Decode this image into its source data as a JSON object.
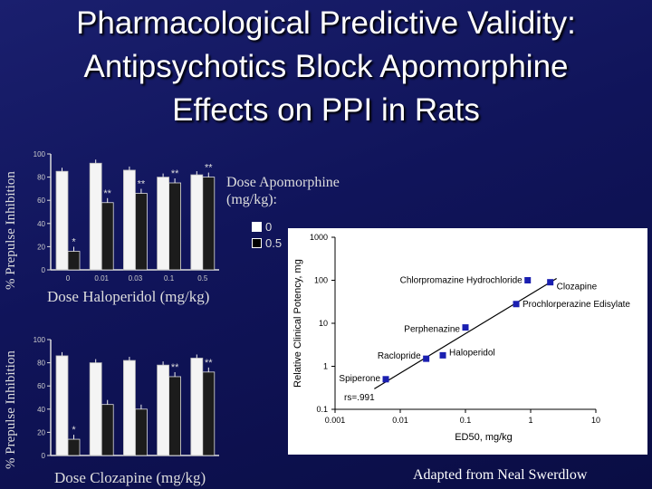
{
  "title": {
    "line1": "Pharmacological Predictive Validity:",
    "line2": "Antipsychotics Block Apomorphine",
    "line3": "Effects on PPI in Rats"
  },
  "top_panel": {
    "ylabel": "% Prepulse Inhibition",
    "xlabel": "Dose Haloperidol (mg/kg)",
    "yticks": [
      "100",
      "80",
      "60",
      "40",
      "20",
      "0"
    ],
    "categories": [
      "0",
      "0.01",
      "0.03",
      "0.1",
      "0.5"
    ],
    "values_dose0": [
      85,
      92,
      86,
      80,
      82
    ],
    "values_dose05": [
      16,
      58,
      66,
      75,
      80
    ],
    "significance": [
      "*",
      "**",
      "**",
      "**",
      "**"
    ]
  },
  "bottom_panel": {
    "ylabel": "% Prepulse Inhibition",
    "xlabel": "Dose Clozapine (mg/kg)",
    "yticks": [
      "100",
      "80",
      "60",
      "40",
      "20",
      "0"
    ],
    "values_dose0": [
      86,
      80,
      82,
      78,
      84
    ],
    "values_dose05": [
      14,
      44,
      40,
      68,
      72
    ],
    "significance": [
      "*",
      "",
      "",
      "**",
      "**"
    ]
  },
  "legend": {
    "title_line1": "Dose Apomorphine",
    "title_line2": "(mg/kg):",
    "items": [
      {
        "label": "0",
        "color": "#ffffff"
      },
      {
        "label": "0.5",
        "color": "#000000"
      }
    ]
  },
  "chart_data": {
    "type": "scatter",
    "xlabel": "ED50, mg/kg",
    "ylabel": "Relative Clinical Potency, mg",
    "x_scale": "log",
    "y_scale": "log",
    "xlim": [
      0.001,
      10
    ],
    "ylim": [
      0.1,
      1000
    ],
    "x_ticks": [
      "0.001",
      "0.01",
      "0.1",
      "1",
      "10"
    ],
    "y_ticks": [
      "1000",
      "100",
      "10",
      "1",
      "0.1"
    ],
    "annotation": "rs=.991",
    "points": [
      {
        "label": "Chlorpromazine Hydrochloride",
        "x": 0.9,
        "y": 100
      },
      {
        "label": "Clozapine",
        "x": 2.0,
        "y": 90
      },
      {
        "label": "Prochlorperazine Edisylate",
        "x": 0.6,
        "y": 28
      },
      {
        "label": "Perphenazine",
        "x": 0.1,
        "y": 8
      },
      {
        "label": "Raclopride",
        "x": 0.025,
        "y": 1.5
      },
      {
        "label": "Haloperidol",
        "x": 0.045,
        "y": 1.8
      },
      {
        "label": "Spiperone",
        "x": 0.006,
        "y": 0.5
      }
    ]
  },
  "colors": {
    "background": "#10145a",
    "marker": "#1a1fb0",
    "chart_bg": "#ffffff"
  },
  "credit": "Adapted from  Neal Swerdlow"
}
